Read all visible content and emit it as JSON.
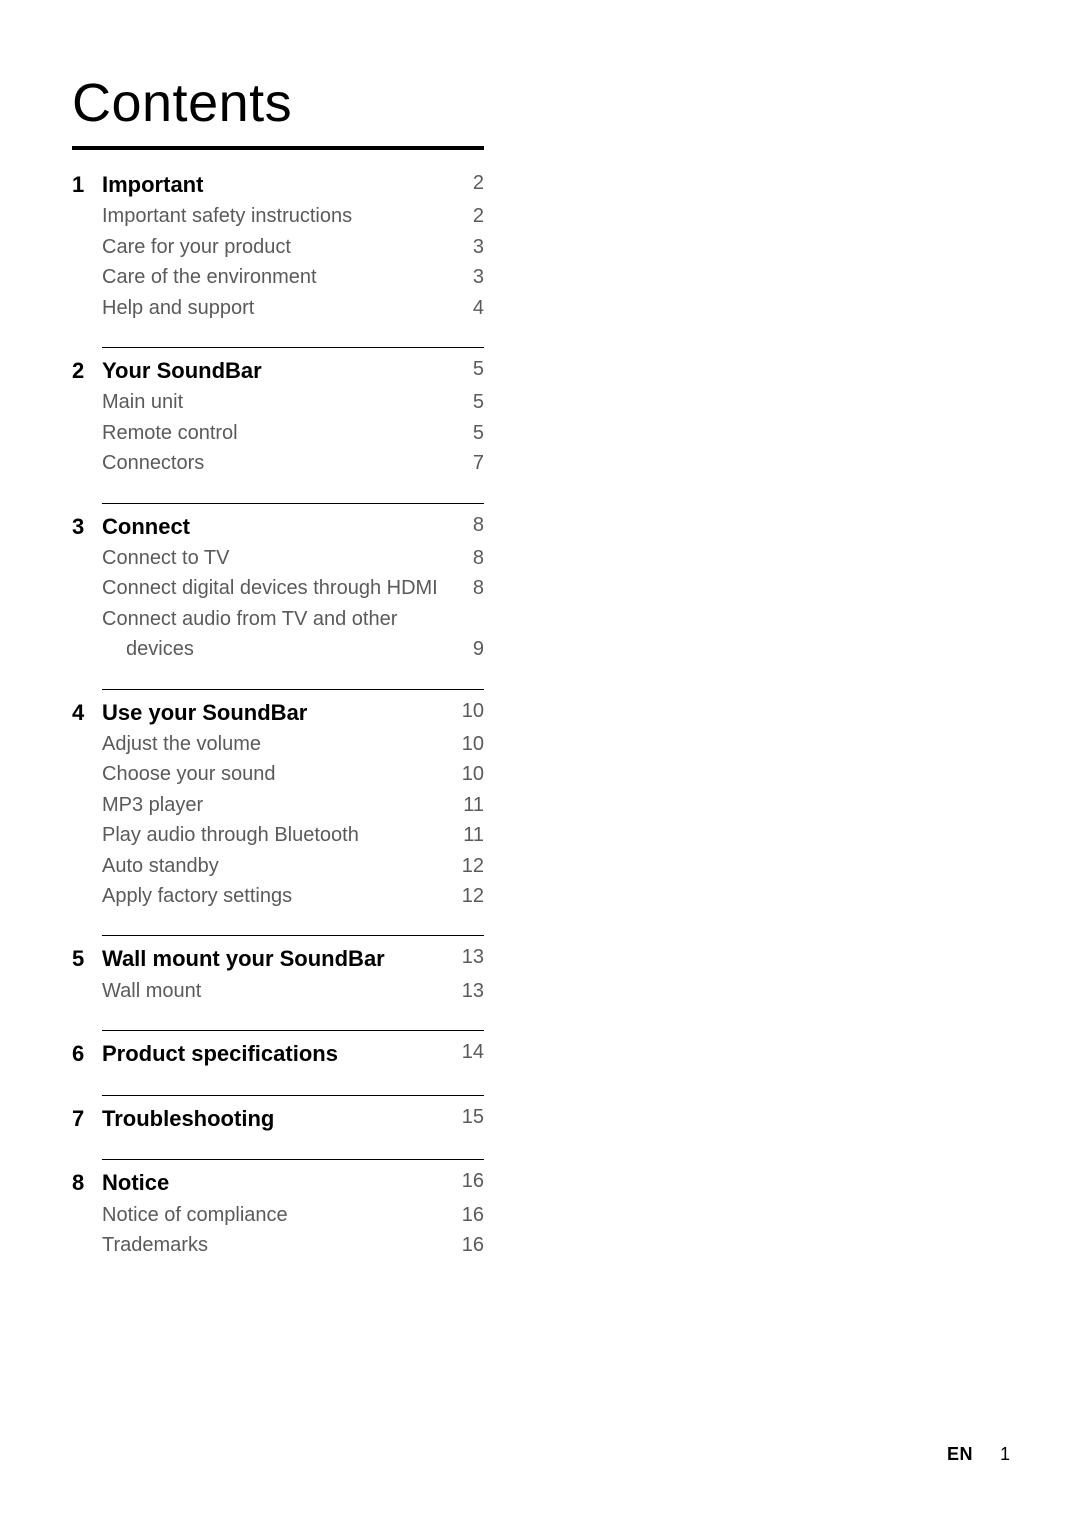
{
  "page": {
    "title": "Contents",
    "footer_lang": "EN",
    "footer_page": "1",
    "background_color": "#ffffff",
    "text_color_primary": "#000000",
    "text_color_secondary": "#5a5a5a",
    "rule_color": "#000000",
    "title_fontsize": 54,
    "section_title_fontsize": 22,
    "item_fontsize": 20
  },
  "sections": [
    {
      "num": "1",
      "title": "Important",
      "page": "2",
      "items": [
        {
          "label": "Important safety instructions",
          "page": "2"
        },
        {
          "label": "Care for your product",
          "page": "3"
        },
        {
          "label": "Care of the environment",
          "page": "3"
        },
        {
          "label": "Help and support",
          "page": "4"
        }
      ]
    },
    {
      "num": "2",
      "title": "Your SoundBar",
      "page": "5",
      "items": [
        {
          "label": "Main unit",
          "page": "5"
        },
        {
          "label": "Remote control",
          "page": "5"
        },
        {
          "label": "Connectors",
          "page": "7"
        }
      ]
    },
    {
      "num": "3",
      "title": "Connect",
      "page": "8",
      "items": [
        {
          "label": "Connect to TV",
          "page": "8"
        },
        {
          "label": "Connect digital devices through HDMI",
          "page": "8"
        },
        {
          "label": "Connect audio from TV and other",
          "page": "",
          "continuation": {
            "label": "devices",
            "page": "9"
          }
        }
      ]
    },
    {
      "num": "4",
      "title": "Use your SoundBar",
      "page": "10",
      "items": [
        {
          "label": "Adjust the volume",
          "page": "10"
        },
        {
          "label": "Choose your sound",
          "page": "10"
        },
        {
          "label": "MP3 player",
          "page": "11"
        },
        {
          "label": "Play audio through Bluetooth",
          "page": "11"
        },
        {
          "label": "Auto standby",
          "page": "12"
        },
        {
          "label": "Apply factory settings",
          "page": "12"
        }
      ]
    },
    {
      "num": "5",
      "title": "Wall mount your SoundBar",
      "page": "13",
      "items": [
        {
          "label": "Wall mount",
          "page": "13"
        }
      ]
    },
    {
      "num": "6",
      "title": "Product specifications",
      "page": "14",
      "items": []
    },
    {
      "num": "7",
      "title": "Troubleshooting",
      "page": "15",
      "items": []
    },
    {
      "num": "8",
      "title": "Notice",
      "page": "16",
      "items": [
        {
          "label": "Notice of compliance",
          "page": "16"
        },
        {
          "label": "Trademarks",
          "page": "16"
        }
      ]
    }
  ]
}
